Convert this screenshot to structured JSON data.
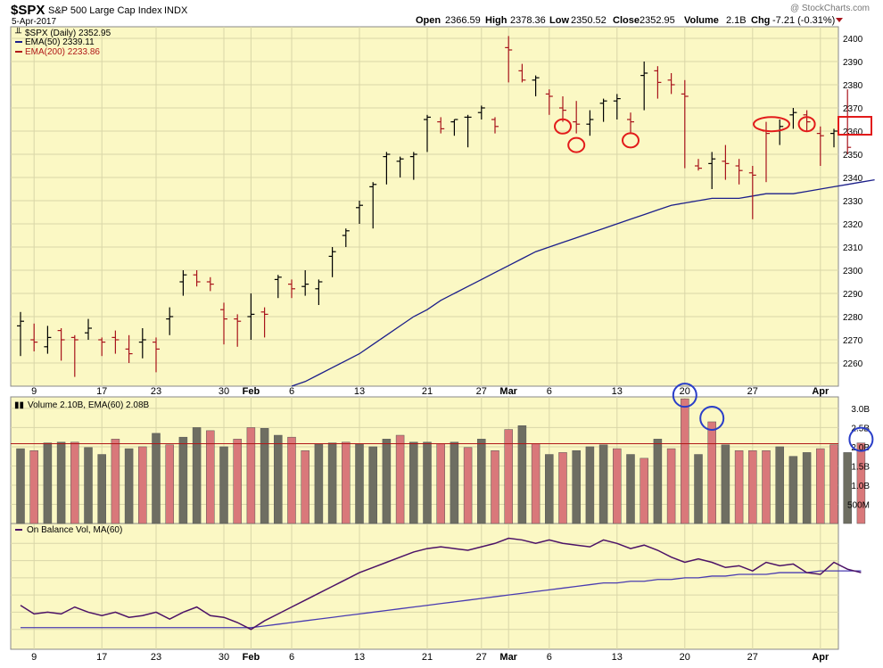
{
  "header": {
    "symbol": "$SPX",
    "name": "S&P 500 Large Cap Index",
    "exchange": "INDX",
    "date": "5-Apr-2017",
    "watermark": "@ StockCharts.com",
    "ohlc": {
      "open_label": "Open",
      "open": "2366.59",
      "high_label": "High",
      "high": "2378.36",
      "low_label": "Low",
      "low": "2350.52",
      "close_label": "Close",
      "close": "2352.95",
      "volume_label": "Volume",
      "volume": "2.1B",
      "chg_label": "Chg",
      "chg": "-7.21 (-0.31%)"
    }
  },
  "legend": {
    "price": "$SPX (Daily) 2352.95",
    "ema50": "EMA(50) 2339.11",
    "ema200": "EMA(200) 2233.86",
    "volume": "Volume 2.10B, EMA(60) 2.08B",
    "obv": "On Balance Vol, MA(60)"
  },
  "colors": {
    "panel_bg": "#fbf8c4",
    "up": "#000000",
    "down": "#a8141c",
    "ema50": "#1c1f8a",
    "ema200": "#b01818",
    "vol_up": "#6e6e62",
    "vol_down": "#d9787a",
    "obv": "#4c1266",
    "obv_ma": "#4a3cb0",
    "circle_red": "#e21b1b",
    "circle_blue": "#2a3ec8"
  },
  "chart_data": [
    {
      "type": "ohlc",
      "title": "$SPX S&P 500 Large Cap Index",
      "ylim": [
        2250,
        2405
      ],
      "y_ticks": [
        2260,
        2270,
        2280,
        2290,
        2300,
        2310,
        2320,
        2330,
        2340,
        2350,
        2360,
        2370,
        2380,
        2390,
        2400
      ],
      "last_price_marker": 2360,
      "x_tick_labels": [
        {
          "label": "9",
          "index": 1
        },
        {
          "label": "17",
          "index": 6
        },
        {
          "label": "23",
          "index": 10
        },
        {
          "label": "30",
          "index": 15
        },
        {
          "label": "Feb",
          "index": 17
        },
        {
          "label": "6",
          "index": 20
        },
        {
          "label": "13",
          "index": 25
        },
        {
          "label": "21",
          "index": 30
        },
        {
          "label": "27",
          "index": 34
        },
        {
          "label": "Mar",
          "index": 36
        },
        {
          "label": "6",
          "index": 39
        },
        {
          "label": "13",
          "index": 44
        },
        {
          "label": "20",
          "index": 49
        },
        {
          "label": "27",
          "index": 54
        },
        {
          "label": "Apr",
          "index": 59
        }
      ],
      "bars": [
        {
          "o": 2276,
          "h": 2282,
          "l": 2263,
          "c": 2278
        },
        {
          "o": 2270,
          "h": 2277,
          "l": 2265,
          "c": 2269
        },
        {
          "o": 2267,
          "h": 2276,
          "l": 2264,
          "c": 2271
        },
        {
          "o": 2274,
          "h": 2275,
          "l": 2261,
          "c": 2270
        },
        {
          "o": 2271,
          "h": 2272,
          "l": 2254,
          "c": 2270
        },
        {
          "o": 2273,
          "h": 2279,
          "l": 2270,
          "c": 2275
        },
        {
          "o": 2270,
          "h": 2271,
          "l": 2263,
          "c": 2269
        },
        {
          "o": 2271,
          "h": 2274,
          "l": 2264,
          "c": 2270
        },
        {
          "o": 2266,
          "h": 2272,
          "l": 2260,
          "c": 2264
        },
        {
          "o": 2269,
          "h": 2275,
          "l": 2262,
          "c": 2270
        },
        {
          "o": 2269,
          "h": 2271,
          "l": 2256,
          "c": 2266
        },
        {
          "o": 2279,
          "h": 2284,
          "l": 2272,
          "c": 2280
        },
        {
          "o": 2295,
          "h": 2300,
          "l": 2289,
          "c": 2298
        },
        {
          "o": 2298,
          "h": 2300,
          "l": 2293,
          "c": 2295
        },
        {
          "o": 2295,
          "h": 2297,
          "l": 2291,
          "c": 2294
        },
        {
          "o": 2283,
          "h": 2286,
          "l": 2268,
          "c": 2279
        },
        {
          "o": 2279,
          "h": 2281,
          "l": 2267,
          "c": 2278
        },
        {
          "o": 2280,
          "h": 2290,
          "l": 2270,
          "c": 2281
        },
        {
          "o": 2282,
          "h": 2284,
          "l": 2271,
          "c": 2281
        },
        {
          "o": 2296,
          "h": 2298,
          "l": 2288,
          "c": 2297
        },
        {
          "o": 2294,
          "h": 2296,
          "l": 2288,
          "c": 2292
        },
        {
          "o": 2293,
          "h": 2300,
          "l": 2289,
          "c": 2294
        },
        {
          "o": 2292,
          "h": 2296,
          "l": 2285,
          "c": 2295
        },
        {
          "o": 2306,
          "h": 2310,
          "l": 2297,
          "c": 2308
        },
        {
          "o": 2315,
          "h": 2318,
          "l": 2310,
          "c": 2317
        },
        {
          "o": 2327,
          "h": 2330,
          "l": 2320,
          "c": 2328
        },
        {
          "o": 2336,
          "h": 2338,
          "l": 2318,
          "c": 2337
        },
        {
          "o": 2349,
          "h": 2351,
          "l": 2337,
          "c": 2350
        },
        {
          "o": 2347,
          "h": 2349,
          "l": 2340,
          "c": 2348
        },
        {
          "o": 2349,
          "h": 2351,
          "l": 2339,
          "c": 2350
        },
        {
          "o": 2365,
          "h": 2367,
          "l": 2351,
          "c": 2366
        },
        {
          "o": 2364,
          "h": 2366,
          "l": 2359,
          "c": 2361
        },
        {
          "o": 2364,
          "h": 2365,
          "l": 2358,
          "c": 2365
        },
        {
          "o": 2366,
          "h": 2367,
          "l": 2353,
          "c": 2366
        },
        {
          "o": 2368,
          "h": 2371,
          "l": 2365,
          "c": 2370
        },
        {
          "o": 2365,
          "h": 2366,
          "l": 2359,
          "c": 2362
        },
        {
          "o": 2396,
          "h": 2401,
          "l": 2381,
          "c": 2395
        },
        {
          "o": 2386,
          "h": 2389,
          "l": 2381,
          "c": 2382
        },
        {
          "o": 2382,
          "h": 2384,
          "l": 2375,
          "c": 2383
        },
        {
          "o": 2376,
          "h": 2378,
          "l": 2367,
          "c": 2375
        },
        {
          "o": 2370,
          "h": 2375,
          "l": 2364,
          "c": 2369
        },
        {
          "o": 2364,
          "h": 2373,
          "l": 2359,
          "c": 2363
        },
        {
          "o": 2363,
          "h": 2369,
          "l": 2358,
          "c": 2365
        },
        {
          "o": 2372,
          "h": 2374,
          "l": 2364,
          "c": 2373
        },
        {
          "o": 2373,
          "h": 2376,
          "l": 2365,
          "c": 2374
        },
        {
          "o": 2365,
          "h": 2368,
          "l": 2359,
          "c": 2364
        },
        {
          "o": 2384,
          "h": 2390,
          "l": 2369,
          "c": 2385
        },
        {
          "o": 2386,
          "h": 2388,
          "l": 2374,
          "c": 2381
        },
        {
          "o": 2382,
          "h": 2385,
          "l": 2376,
          "c": 2380
        },
        {
          "o": 2376,
          "h": 2382,
          "l": 2344,
          "c": 2375
        },
        {
          "o": 2345,
          "h": 2348,
          "l": 2343,
          "c": 2344
        },
        {
          "o": 2346,
          "h": 2351,
          "l": 2335,
          "c": 2348
        },
        {
          "o": 2347,
          "h": 2354,
          "l": 2339,
          "c": 2346
        },
        {
          "o": 2345,
          "h": 2348,
          "l": 2337,
          "c": 2343
        },
        {
          "o": 2342,
          "h": 2345,
          "l": 2322,
          "c": 2341
        },
        {
          "o": 2360,
          "h": 2364,
          "l": 2338,
          "c": 2359
        },
        {
          "o": 2360,
          "h": 2365,
          "l": 2354,
          "c": 2362
        },
        {
          "o": 2367,
          "h": 2370,
          "l": 2361,
          "c": 2368
        },
        {
          "o": 2367,
          "h": 2369,
          "l": 2360,
          "c": 2364
        },
        {
          "o": 2359,
          "h": 2362,
          "l": 2345,
          "c": 2358
        },
        {
          "o": 2359,
          "h": 2361,
          "l": 2353,
          "c": 2360
        },
        {
          "o": 2366,
          "h": 2378,
          "l": 2350,
          "c": 2353
        }
      ],
      "series": [
        {
          "name": "EMA(50)",
          "start_index": 20,
          "values": [
            2250,
            2252,
            2255,
            2258,
            2261,
            2264,
            2268,
            2272,
            2276,
            2280,
            2283,
            2287,
            2290,
            2293,
            2296,
            2299,
            2302,
            2305,
            2308,
            2310,
            2312,
            2314,
            2316,
            2318,
            2320,
            2322,
            2324,
            2326,
            2328,
            2329,
            2330,
            2331,
            2331,
            2331,
            2332,
            2333,
            2333,
            2333,
            2334,
            2335,
            2336,
            2337,
            2338,
            2339
          ]
        },
        {
          "name": "EMA(200)",
          "values": []
        }
      ],
      "annotations": [
        {
          "shape": "ellipse",
          "color": "red",
          "index": 40,
          "price": 2362
        },
        {
          "shape": "ellipse",
          "color": "red",
          "index": 41,
          "price": 2354
        },
        {
          "shape": "ellipse",
          "color": "red",
          "index": 45,
          "price": 2356
        },
        {
          "shape": "ellipse",
          "color": "red",
          "index": 55,
          "price": 2363
        },
        {
          "shape": "ellipse",
          "color": "red",
          "index": 58,
          "price": 2363
        }
      ]
    },
    {
      "type": "bar",
      "title": "Volume 2.10B, EMA(60) 2.08B",
      "ylim": [
        0,
        3.3
      ],
      "y_tick_labels": [
        "500M",
        "1.0B",
        "1.5B",
        "2.0B",
        "2.5B",
        "3.0B"
      ],
      "y_tick_values": [
        0.5,
        1.0,
        1.5,
        2.0,
        2.5,
        3.0
      ],
      "values": [
        1.95,
        1.9,
        2.1,
        2.12,
        2.12,
        1.98,
        1.8,
        2.2,
        1.95,
        2.0,
        2.35,
        2.05,
        2.25,
        2.5,
        2.42,
        2.0,
        2.2,
        2.5,
        2.48,
        2.3,
        2.25,
        1.9,
        2.08,
        2.1,
        2.12,
        2.08,
        2.0,
        2.2,
        2.3,
        2.12,
        2.12,
        2.08,
        2.12,
        1.98,
        2.2,
        1.9,
        2.45,
        2.55,
        2.08,
        1.8,
        1.85,
        1.9,
        2.0,
        2.05,
        1.95,
        1.8,
        1.7,
        2.2,
        1.95,
        3.25,
        1.8,
        2.65,
        2.05,
        1.9,
        1.9,
        1.9,
        2.0,
        1.75,
        1.85,
        1.95,
        2.05,
        1.85,
        2.1
      ],
      "up": [
        true,
        false,
        true,
        true,
        false,
        true,
        true,
        false,
        true,
        false,
        true,
        false,
        true,
        true,
        false,
        true,
        false,
        false,
        true,
        true,
        false,
        false,
        true,
        true,
        false,
        true,
        true,
        true,
        false,
        true,
        true,
        false,
        true,
        false,
        true,
        false,
        false,
        true,
        false,
        true,
        false,
        true,
        true,
        true,
        false,
        true,
        false,
        true,
        false,
        false,
        true,
        false,
        true,
        false,
        false,
        false,
        true,
        true,
        true,
        false,
        false,
        true,
        false
      ],
      "series": [
        {
          "name": "EMA(60)",
          "value": 2.08
        }
      ],
      "annotations": [
        {
          "shape": "ellipse",
          "color": "blue",
          "index": 49
        },
        {
          "shape": "ellipse",
          "color": "blue",
          "index": 51
        },
        {
          "shape": "ellipse",
          "color": "blue",
          "index": 62
        }
      ]
    },
    {
      "type": "line",
      "title": "On Balance Vol, MA(60)",
      "series": [
        {
          "name": "On Balance Vol",
          "values": [
            24,
            19,
            20,
            19,
            23,
            20,
            18,
            20,
            17,
            18,
            20,
            16,
            20,
            23,
            18,
            17,
            14,
            10,
            15,
            19,
            23,
            27,
            31,
            35,
            39,
            43,
            46,
            49,
            52,
            55,
            57,
            58,
            57,
            56,
            58,
            60,
            63,
            62,
            60,
            62,
            60,
            59,
            58,
            62,
            60,
            57,
            59,
            56,
            52,
            49,
            51,
            49,
            46,
            47,
            44,
            49,
            47,
            48,
            43,
            42,
            49,
            45,
            43
          ]
        },
        {
          "name": "MA(60)",
          "values": [
            11,
            11,
            11,
            11,
            11,
            11,
            11,
            11,
            11,
            11,
            11,
            11,
            11,
            11,
            11,
            11,
            11,
            11,
            12,
            13,
            14,
            15,
            16,
            17,
            18,
            19,
            20,
            21,
            22,
            23,
            24,
            25,
            26,
            27,
            28,
            29,
            30,
            31,
            32,
            33,
            34,
            35,
            36,
            37,
            37,
            38,
            38,
            39,
            39,
            40,
            40,
            41,
            41,
            42,
            42,
            42,
            43,
            43,
            43,
            44,
            44,
            44,
            44
          ]
        }
      ]
    }
  ]
}
